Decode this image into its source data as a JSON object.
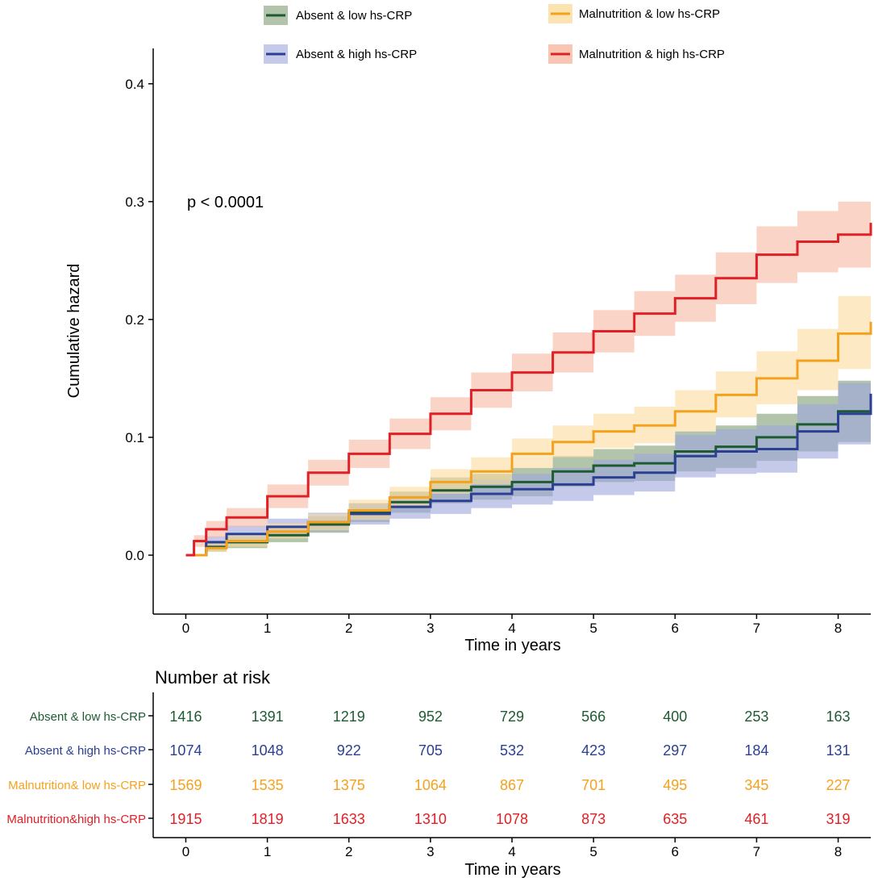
{
  "chart_data": {
    "type": "line",
    "subtype": "cumulative-hazard",
    "ylabel": "Cumulative hazard",
    "xlabel": "Time in years",
    "xlim": [
      -0.4,
      8.4
    ],
    "ylim": [
      -0.05,
      0.43
    ],
    "x_ticks": [
      0,
      1,
      2,
      3,
      4,
      5,
      6,
      7,
      8
    ],
    "y_ticks": [
      "0.0",
      "0.1",
      "0.2",
      "0.3",
      "0.4"
    ],
    "y_tick_values": [
      0,
      0.1,
      0.2,
      0.3,
      0.4
    ],
    "annotation": "p < 0.0001",
    "legend_position": "top",
    "series": [
      {
        "name": "Absent & low hs-CRP",
        "color": "#1e5b32",
        "band_color": "#7f9d72",
        "points": [
          [
            0,
            0
          ],
          [
            0.25,
            0.007
          ],
          [
            0.5,
            0.011
          ],
          [
            1,
            0.017
          ],
          [
            1.5,
            0.026
          ],
          [
            2,
            0.036
          ],
          [
            2.5,
            0.045
          ],
          [
            3,
            0.055
          ],
          [
            3.5,
            0.058
          ],
          [
            4,
            0.062
          ],
          [
            4.5,
            0.071
          ],
          [
            5,
            0.076
          ],
          [
            5.5,
            0.078
          ],
          [
            6,
            0.088
          ],
          [
            6.5,
            0.092
          ],
          [
            7,
            0.1
          ],
          [
            7.5,
            0.111
          ],
          [
            8,
            0.122
          ],
          [
            8.4,
            0.13
          ]
        ],
        "lower": [
          [
            0,
            0
          ],
          [
            0.25,
            0.003
          ],
          [
            0.5,
            0.006
          ],
          [
            1,
            0.011
          ],
          [
            1.5,
            0.019
          ],
          [
            2,
            0.028
          ],
          [
            2.5,
            0.036
          ],
          [
            3,
            0.044
          ],
          [
            3.5,
            0.047
          ],
          [
            4,
            0.05
          ],
          [
            4.5,
            0.058
          ],
          [
            5,
            0.062
          ],
          [
            5.5,
            0.063
          ],
          [
            6,
            0.071
          ],
          [
            6.5,
            0.074
          ],
          [
            7,
            0.08
          ],
          [
            7.5,
            0.088
          ],
          [
            8,
            0.096
          ],
          [
            8.4,
            0.101
          ]
        ],
        "upper": [
          [
            0,
            0
          ],
          [
            0.25,
            0.011
          ],
          [
            0.5,
            0.016
          ],
          [
            1,
            0.023
          ],
          [
            1.5,
            0.033
          ],
          [
            2,
            0.044
          ],
          [
            2.5,
            0.054
          ],
          [
            3,
            0.066
          ],
          [
            3.5,
            0.069
          ],
          [
            4,
            0.074
          ],
          [
            4.5,
            0.084
          ],
          [
            5,
            0.09
          ],
          [
            5.5,
            0.093
          ],
          [
            6,
            0.105
          ],
          [
            6.5,
            0.11
          ],
          [
            7,
            0.12
          ],
          [
            7.5,
            0.135
          ],
          [
            8,
            0.148
          ],
          [
            8.4,
            0.16
          ]
        ]
      },
      {
        "name": "Absent & high hs-CRP",
        "color": "#2b3f93",
        "band_color": "#9ea6dd",
        "points": [
          [
            0,
            0
          ],
          [
            0.25,
            0.011
          ],
          [
            0.5,
            0.018
          ],
          [
            1,
            0.024
          ],
          [
            1.5,
            0.028
          ],
          [
            2,
            0.035
          ],
          [
            2.5,
            0.041
          ],
          [
            3,
            0.046
          ],
          [
            3.5,
            0.052
          ],
          [
            4,
            0.056
          ],
          [
            4.5,
            0.06
          ],
          [
            5,
            0.066
          ],
          [
            5.5,
            0.07
          ],
          [
            6,
            0.084
          ],
          [
            6.5,
            0.088
          ],
          [
            7,
            0.09
          ],
          [
            7.5,
            0.105
          ],
          [
            8,
            0.12
          ],
          [
            8.4,
            0.137
          ]
        ],
        "lower": [
          [
            0,
            0
          ],
          [
            0.25,
            0.006
          ],
          [
            0.5,
            0.012
          ],
          [
            1,
            0.017
          ],
          [
            1.5,
            0.02
          ],
          [
            2,
            0.026
          ],
          [
            2.5,
            0.031
          ],
          [
            3,
            0.035
          ],
          [
            3.5,
            0.04
          ],
          [
            4,
            0.043
          ],
          [
            4.5,
            0.046
          ],
          [
            5,
            0.051
          ],
          [
            5.5,
            0.054
          ],
          [
            6,
            0.066
          ],
          [
            6.5,
            0.069
          ],
          [
            7,
            0.07
          ],
          [
            7.5,
            0.082
          ],
          [
            8,
            0.094
          ],
          [
            8.4,
            0.107
          ]
        ],
        "upper": [
          [
            0,
            0
          ],
          [
            0.25,
            0.016
          ],
          [
            0.5,
            0.025
          ],
          [
            1,
            0.031
          ],
          [
            1.5,
            0.036
          ],
          [
            2,
            0.044
          ],
          [
            2.5,
            0.051
          ],
          [
            3,
            0.057
          ],
          [
            3.5,
            0.064
          ],
          [
            4,
            0.069
          ],
          [
            4.5,
            0.074
          ],
          [
            5,
            0.081
          ],
          [
            5.5,
            0.086
          ],
          [
            6,
            0.102
          ],
          [
            6.5,
            0.107
          ],
          [
            7,
            0.11
          ],
          [
            7.5,
            0.128
          ],
          [
            8,
            0.146
          ],
          [
            8.4,
            0.167
          ]
        ]
      },
      {
        "name": "Malnutrition & low hs-CRP",
        "color": "#f4a21e",
        "band_color": "#fbdc9f",
        "points": [
          [
            0,
            0
          ],
          [
            0.25,
            0.006
          ],
          [
            0.5,
            0.012
          ],
          [
            1,
            0.02
          ],
          [
            1.5,
            0.028
          ],
          [
            2,
            0.038
          ],
          [
            2.5,
            0.049
          ],
          [
            3,
            0.062
          ],
          [
            3.5,
            0.071
          ],
          [
            4,
            0.086
          ],
          [
            4.5,
            0.096
          ],
          [
            5,
            0.105
          ],
          [
            5.5,
            0.11
          ],
          [
            6,
            0.122
          ],
          [
            6.5,
            0.136
          ],
          [
            7,
            0.15
          ],
          [
            7.5,
            0.165
          ],
          [
            8,
            0.188
          ],
          [
            8.4,
            0.198
          ]
        ],
        "lower": [
          [
            0,
            0
          ],
          [
            0.25,
            0.003
          ],
          [
            0.5,
            0.007
          ],
          [
            1,
            0.014
          ],
          [
            1.5,
            0.021
          ],
          [
            2,
            0.03
          ],
          [
            2.5,
            0.04
          ],
          [
            3,
            0.052
          ],
          [
            3.5,
            0.06
          ],
          [
            4,
            0.074
          ],
          [
            4.5,
            0.083
          ],
          [
            5,
            0.091
          ],
          [
            5.5,
            0.095
          ],
          [
            6,
            0.105
          ],
          [
            6.5,
            0.117
          ],
          [
            7,
            0.128
          ],
          [
            7.5,
            0.14
          ],
          [
            8,
            0.158
          ],
          [
            8.4,
            0.165
          ]
        ],
        "upper": [
          [
            0,
            0
          ],
          [
            0.25,
            0.01
          ],
          [
            0.5,
            0.017
          ],
          [
            1,
            0.027
          ],
          [
            1.5,
            0.035
          ],
          [
            2,
            0.047
          ],
          [
            2.5,
            0.058
          ],
          [
            3,
            0.073
          ],
          [
            3.5,
            0.083
          ],
          [
            4,
            0.099
          ],
          [
            4.5,
            0.11
          ],
          [
            5,
            0.12
          ],
          [
            5.5,
            0.126
          ],
          [
            6,
            0.14
          ],
          [
            6.5,
            0.156
          ],
          [
            7,
            0.173
          ],
          [
            7.5,
            0.192
          ],
          [
            8,
            0.22
          ],
          [
            8.4,
            0.235
          ]
        ]
      },
      {
        "name": "Malnutrition & high hs-CRP",
        "color": "#e01f26",
        "band_color": "#f7b8a0",
        "points": [
          [
            0,
            0
          ],
          [
            0.1,
            0.012
          ],
          [
            0.25,
            0.022
          ],
          [
            0.5,
            0.032
          ],
          [
            1,
            0.05
          ],
          [
            1.5,
            0.07
          ],
          [
            2,
            0.086
          ],
          [
            2.5,
            0.103
          ],
          [
            3,
            0.12
          ],
          [
            3.5,
            0.14
          ],
          [
            4,
            0.155
          ],
          [
            4.5,
            0.172
          ],
          [
            5,
            0.19
          ],
          [
            5.5,
            0.205
          ],
          [
            6,
            0.218
          ],
          [
            6.5,
            0.235
          ],
          [
            7,
            0.255
          ],
          [
            7.5,
            0.266
          ],
          [
            8,
            0.272
          ],
          [
            8.4,
            0.282
          ]
        ],
        "lower": [
          [
            0,
            0
          ],
          [
            0.1,
            0.007
          ],
          [
            0.25,
            0.015
          ],
          [
            0.5,
            0.024
          ],
          [
            1,
            0.04
          ],
          [
            1.5,
            0.059
          ],
          [
            2,
            0.074
          ],
          [
            2.5,
            0.09
          ],
          [
            3,
            0.106
          ],
          [
            3.5,
            0.125
          ],
          [
            4,
            0.139
          ],
          [
            4.5,
            0.155
          ],
          [
            5,
            0.172
          ],
          [
            5.5,
            0.186
          ],
          [
            6,
            0.198
          ],
          [
            6.5,
            0.213
          ],
          [
            7,
            0.231
          ],
          [
            7.5,
            0.24
          ],
          [
            8,
            0.244
          ],
          [
            8.4,
            0.25
          ]
        ],
        "upper": [
          [
            0,
            0
          ],
          [
            0.1,
            0.017
          ],
          [
            0.25,
            0.029
          ],
          [
            0.5,
            0.04
          ],
          [
            1,
            0.06
          ],
          [
            1.5,
            0.081
          ],
          [
            2,
            0.098
          ],
          [
            2.5,
            0.116
          ],
          [
            3,
            0.134
          ],
          [
            3.5,
            0.155
          ],
          [
            4,
            0.171
          ],
          [
            4.5,
            0.189
          ],
          [
            5,
            0.208
          ],
          [
            5.5,
            0.224
          ],
          [
            6,
            0.238
          ],
          [
            6.5,
            0.257
          ],
          [
            7,
            0.279
          ],
          [
            7.5,
            0.292
          ],
          [
            8,
            0.3
          ],
          [
            8.4,
            0.318
          ]
        ]
      }
    ]
  },
  "risk_table": {
    "title": "Number at risk",
    "xlabel": "Time in years",
    "x_ticks": [
      0,
      1,
      2,
      3,
      4,
      5,
      6,
      7,
      8
    ],
    "rows": [
      {
        "label": "Absent & low hs-CRP",
        "color": "#1e5b32",
        "values": [
          1416,
          1391,
          1219,
          952,
          729,
          566,
          400,
          253,
          163
        ]
      },
      {
        "label": "Absent & high hs-CRP",
        "color": "#2b3f93",
        "values": [
          1074,
          1048,
          922,
          705,
          532,
          423,
          297,
          184,
          131
        ]
      },
      {
        "label": "Malnutrition& low hs-CRP",
        "color": "#f4a21e",
        "values": [
          1569,
          1535,
          1375,
          1064,
          867,
          701,
          495,
          345,
          227
        ]
      },
      {
        "label": "Malnutrition&high hs-CRP",
        "color": "#e01f26",
        "values": [
          1915,
          1819,
          1633,
          1310,
          1078,
          873,
          635,
          461,
          319
        ]
      }
    ]
  }
}
